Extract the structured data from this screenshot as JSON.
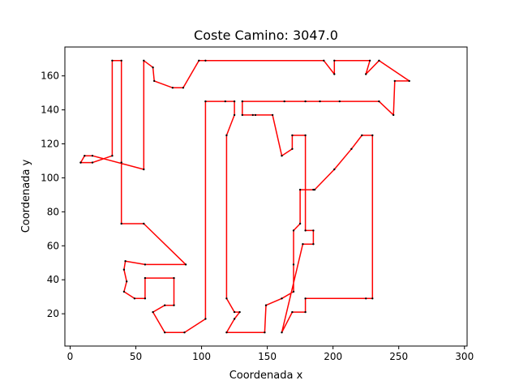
{
  "chart_data": {
    "type": "line",
    "title": "Coste Camino: 3047.0",
    "xlabel": "Coordenada x",
    "ylabel": "Coordenada y",
    "xlim": [
      -4,
      302
    ],
    "ylim": [
      1,
      177
    ],
    "xticks": [
      0,
      50,
      100,
      150,
      200,
      250,
      300
    ],
    "yticks": [
      20,
      40,
      60,
      80,
      100,
      120,
      140,
      160
    ],
    "grid": false,
    "line_color": "#ff0000",
    "marker_color": "#000000",
    "path": [
      [
        8,
        109
      ],
      [
        17,
        109
      ],
      [
        32,
        113
      ],
      [
        32,
        169
      ],
      [
        39,
        169
      ],
      [
        39,
        109
      ],
      [
        39,
        73
      ],
      [
        56,
        73
      ],
      [
        88,
        49
      ],
      [
        57,
        49
      ],
      [
        42,
        51
      ],
      [
        41,
        46
      ],
      [
        43,
        39
      ],
      [
        41,
        33
      ],
      [
        49,
        29
      ],
      [
        57,
        29
      ],
      [
        57,
        41
      ],
      [
        79,
        41
      ],
      [
        79,
        25
      ],
      [
        72,
        25
      ],
      [
        63,
        21
      ],
      [
        72,
        9
      ],
      [
        87,
        9
      ],
      [
        103,
        17
      ],
      [
        103,
        145
      ],
      [
        118,
        145
      ],
      [
        125,
        145
      ],
      [
        125,
        137
      ],
      [
        119,
        125
      ],
      [
        119,
        29
      ],
      [
        125,
        21
      ],
      [
        129,
        21
      ],
      [
        125,
        17
      ],
      [
        119,
        9
      ],
      [
        148,
        9
      ],
      [
        149,
        25
      ],
      [
        161,
        29
      ],
      [
        170,
        33
      ],
      [
        170,
        49
      ],
      [
        170,
        69
      ],
      [
        175,
        73
      ],
      [
        175,
        93
      ],
      [
        185,
        93
      ],
      [
        186,
        93
      ],
      [
        201,
        105
      ],
      [
        214,
        117
      ],
      [
        222,
        125
      ],
      [
        230,
        125
      ],
      [
        230,
        29
      ],
      [
        225,
        29
      ],
      [
        179,
        29
      ],
      [
        179,
        21
      ],
      [
        169,
        21
      ],
      [
        161,
        9
      ],
      [
        177,
        61
      ],
      [
        185,
        61
      ],
      [
        185,
        69
      ],
      [
        179,
        69
      ],
      [
        179,
        125
      ],
      [
        169,
        125
      ],
      [
        169,
        117
      ],
      [
        161,
        113
      ],
      [
        154,
        137
      ],
      [
        141,
        137
      ],
      [
        139,
        137
      ],
      [
        131,
        137
      ],
      [
        131,
        145
      ],
      [
        163,
        145
      ],
      [
        179,
        145
      ],
      [
        190,
        145
      ],
      [
        205,
        145
      ],
      [
        235,
        145
      ],
      [
        246,
        137
      ],
      [
        247,
        157
      ],
      [
        258,
        157
      ],
      [
        235,
        169
      ],
      [
        225,
        161
      ],
      [
        228,
        169
      ],
      [
        201,
        169
      ],
      [
        201,
        161
      ],
      [
        193,
        169
      ],
      [
        103,
        169
      ],
      [
        98,
        169
      ],
      [
        86,
        153
      ],
      [
        78,
        153
      ],
      [
        64,
        157
      ],
      [
        63,
        165
      ],
      [
        56,
        169
      ],
      [
        56,
        105
      ],
      [
        17,
        113
      ],
      [
        11,
        113
      ],
      [
        8,
        109
      ]
    ]
  }
}
